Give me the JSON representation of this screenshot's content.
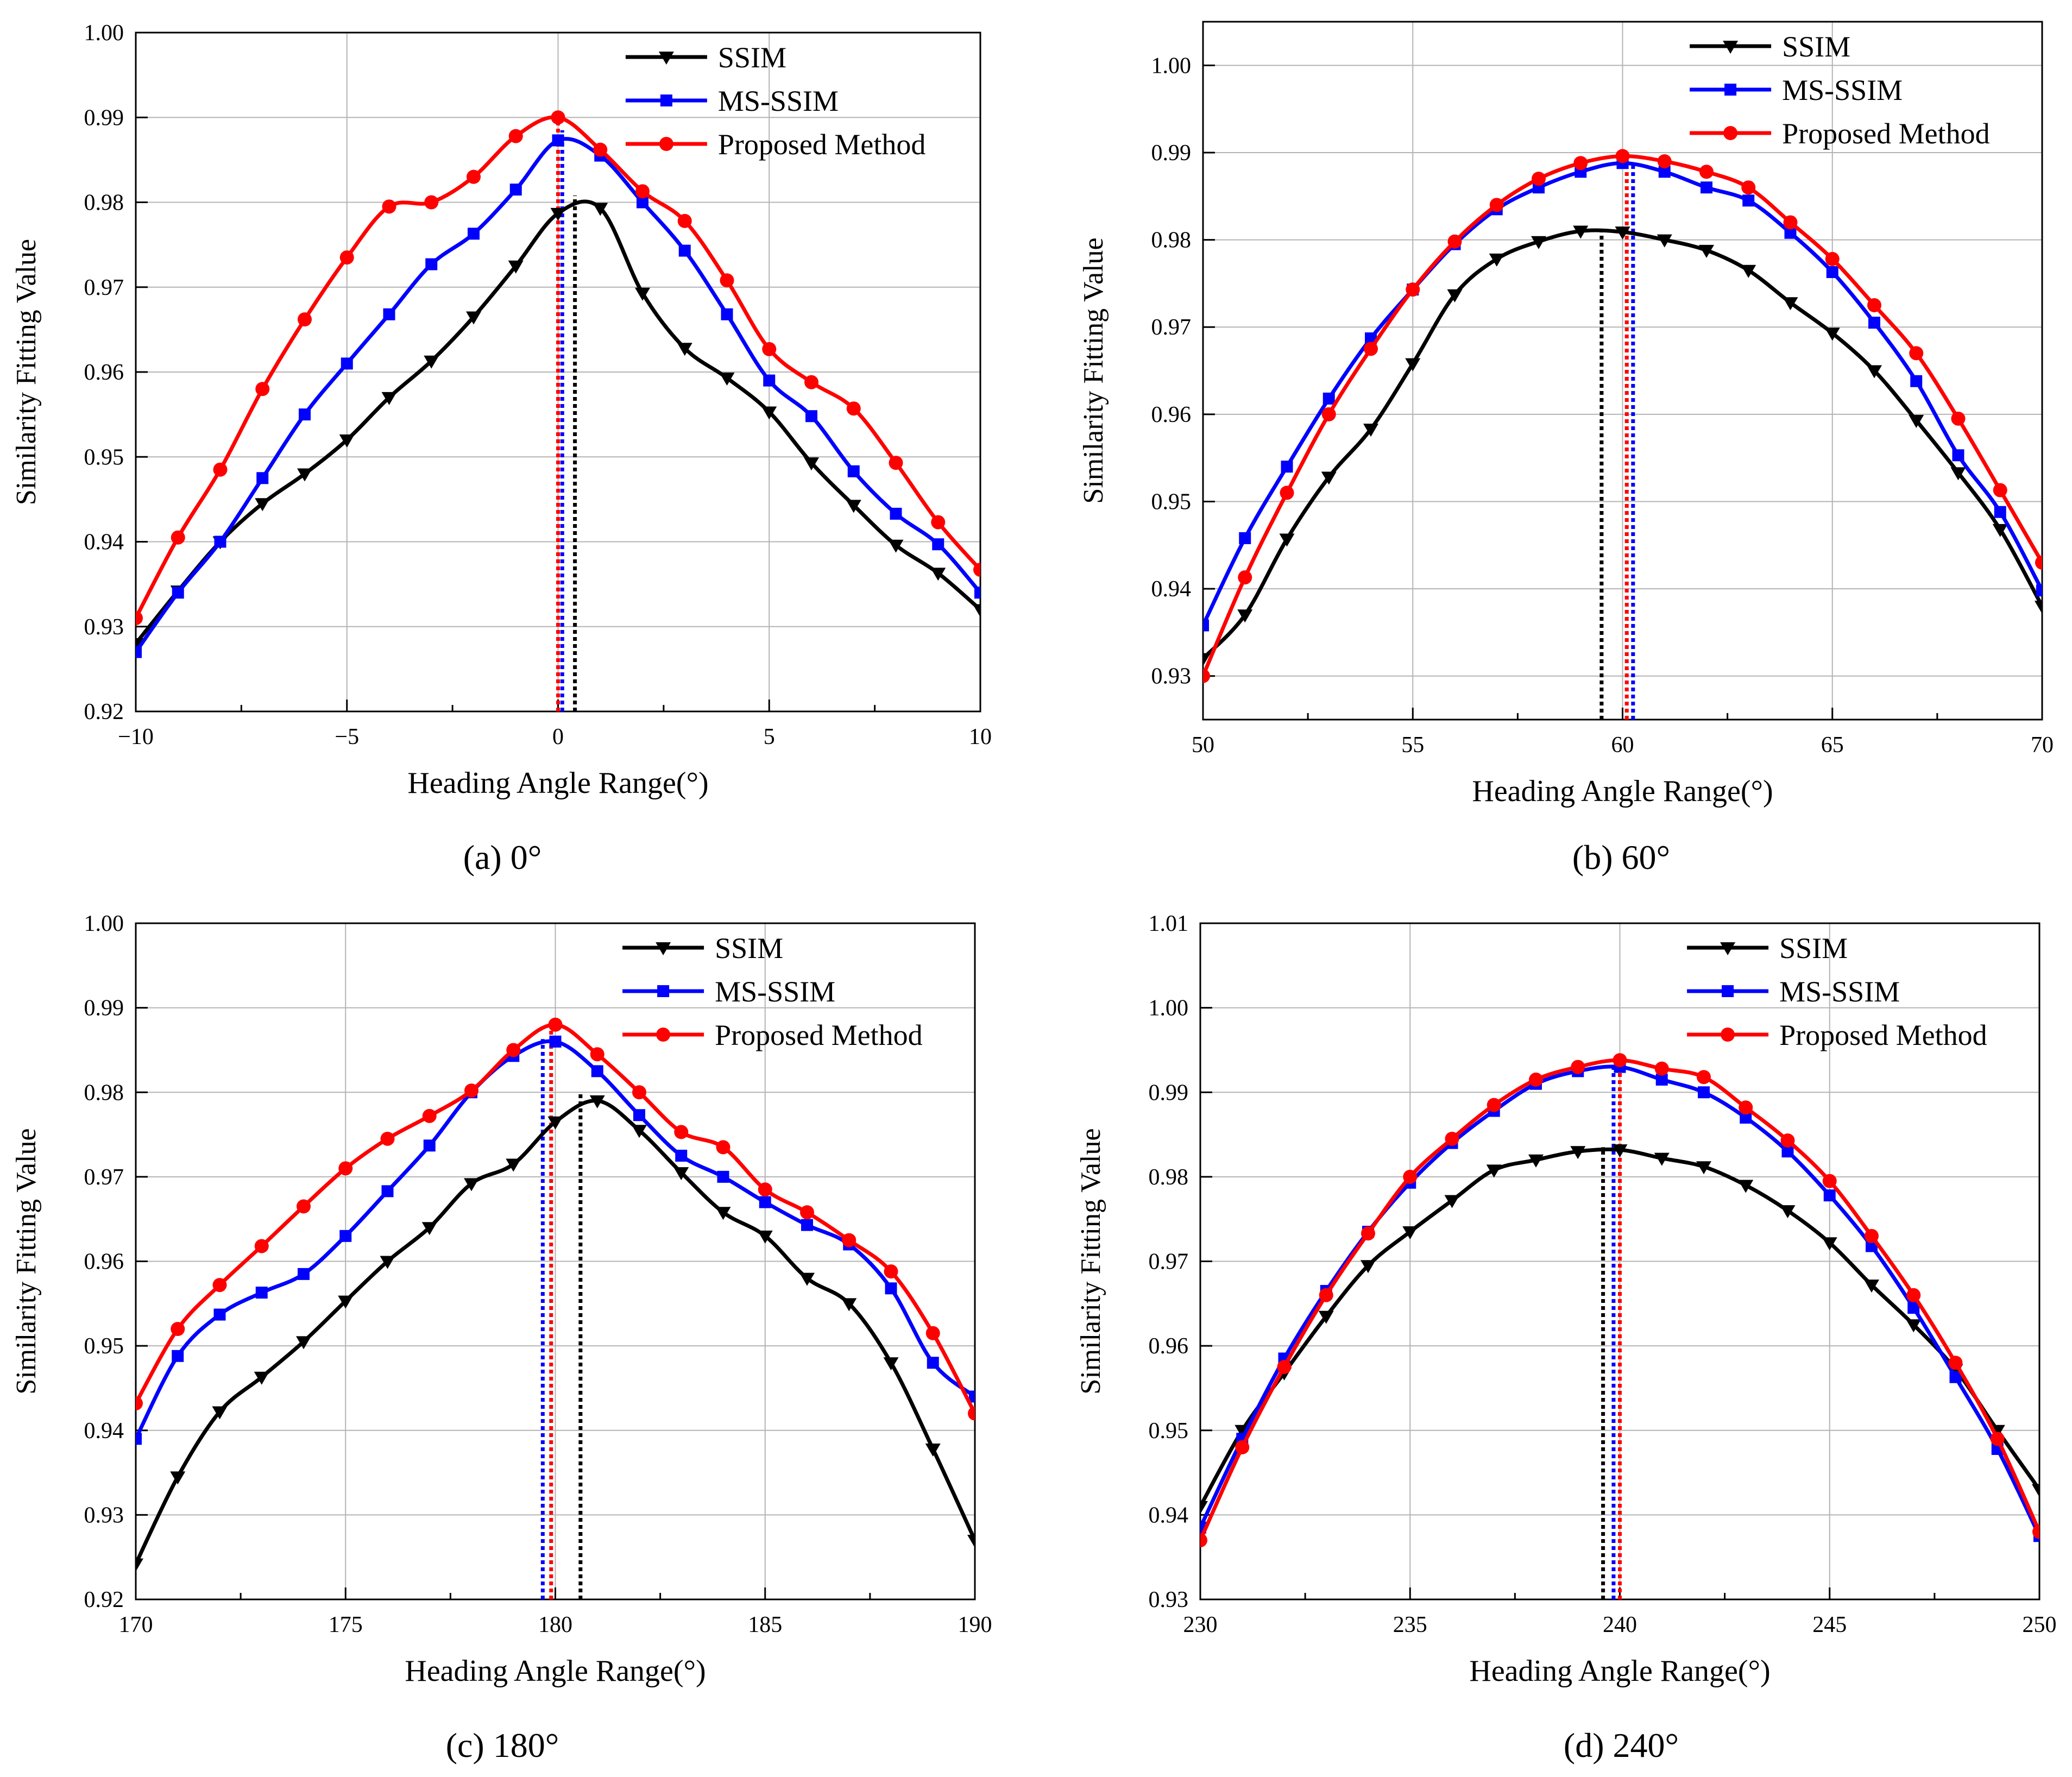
{
  "colors": {
    "ssim": "#000000",
    "msssim": "#0000ff",
    "proposed": "#ff0000",
    "grid": "#b4b4b4"
  },
  "legend": {
    "ssim": "SSIM",
    "msssim": "MS-SSIM",
    "proposed": "Proposed Method"
  },
  "chart_data": [
    {
      "type": "line",
      "caption_letter": "(a)",
      "caption_text": " 0°",
      "xlabel": "Heading Angle Range(°)",
      "ylabel": "Similarity Fitting Value",
      "xlim": [
        -10,
        10
      ],
      "ylim": [
        0.92,
        1.0
      ],
      "xticks": [
        -10,
        -5,
        0,
        5,
        10
      ],
      "xtick_labels": [
        "−10",
        "−5",
        "0",
        "5",
        "10"
      ],
      "yticks": [
        0.92,
        0.93,
        0.94,
        0.95,
        0.96,
        0.97,
        0.98,
        0.99,
        1.0
      ],
      "ytick_labels": [
        "0.92",
        "0.93",
        "0.94",
        "0.95",
        "0.96",
        "0.97",
        "0.98",
        "0.99",
        "1.00"
      ],
      "x": [
        -10,
        -9,
        -8,
        -7,
        -6,
        -5,
        -4,
        -3,
        -2,
        -1,
        0,
        1,
        2,
        3,
        4,
        5,
        6,
        7,
        8,
        9,
        10
      ],
      "series": [
        {
          "name": "SSIM",
          "key": "ssim",
          "marker": "triangle-down",
          "values": [
            0.928,
            0.9342,
            0.94,
            0.9445,
            0.948,
            0.952,
            0.957,
            0.9613,
            0.9665,
            0.9725,
            0.9787,
            0.9793,
            0.9693,
            0.9628,
            0.9593,
            0.9553,
            0.9493,
            0.9443,
            0.9396,
            0.9363,
            0.932
          ]
        },
        {
          "name": "MS-SSIM",
          "key": "msssim",
          "marker": "square",
          "values": [
            0.927,
            0.934,
            0.94,
            0.9475,
            0.955,
            0.961,
            0.9668,
            0.9727,
            0.9763,
            0.9815,
            0.9873,
            0.9855,
            0.98,
            0.9743,
            0.9668,
            0.959,
            0.9548,
            0.9483,
            0.9433,
            0.9397,
            0.934
          ]
        },
        {
          "name": "Proposed Method",
          "key": "proposed",
          "marker": "circle",
          "values": [
            0.931,
            0.9405,
            0.9485,
            0.958,
            0.9662,
            0.9735,
            0.9795,
            0.98,
            0.983,
            0.9878,
            0.99,
            0.9862,
            0.9813,
            0.9778,
            0.9708,
            0.9627,
            0.9588,
            0.9557,
            0.9493,
            0.9423,
            0.9367
          ]
        }
      ],
      "peaks": [
        {
          "x": 0.4,
          "y": 0.9808,
          "key": "ssim"
        },
        {
          "x": 0.1,
          "y": 0.9885,
          "key": "msssim"
        },
        {
          "x": 0.0,
          "y": 0.99,
          "key": "proposed"
        }
      ]
    },
    {
      "type": "line",
      "caption_letter": "(b)",
      "caption_text": " 60°",
      "xlabel": "Heading Angle Range(°)",
      "ylabel": "Similarity Fitting Value",
      "xlim": [
        50,
        70
      ],
      "ylim": [
        0.925,
        1.005
      ],
      "xticks": [
        50,
        55,
        60,
        65,
        70
      ],
      "xtick_labels": [
        "50",
        "55",
        "60",
        "65",
        "70"
      ],
      "yticks": [
        0.93,
        0.94,
        0.95,
        0.96,
        0.97,
        0.98,
        0.99,
        1.0
      ],
      "ytick_labels": [
        "0.93",
        "0.94",
        "0.95",
        "0.96",
        "0.97",
        "0.98",
        "0.99",
        "1.00"
      ],
      "x": [
        50,
        51,
        52,
        53,
        54,
        55,
        56,
        57,
        58,
        59,
        60,
        61,
        62,
        63,
        64,
        65,
        66,
        67,
        68,
        69,
        70
      ],
      "series": [
        {
          "name": "SSIM",
          "key": "ssim",
          "marker": "triangle-down",
          "values": [
            0.932,
            0.937,
            0.9457,
            0.9528,
            0.9583,
            0.9658,
            0.9737,
            0.9778,
            0.9798,
            0.981,
            0.9809,
            0.98,
            0.9788,
            0.9765,
            0.9728,
            0.9693,
            0.965,
            0.9593,
            0.9533,
            0.9468,
            0.938
          ]
        },
        {
          "name": "MS-SSIM",
          "key": "msssim",
          "marker": "square",
          "values": [
            0.9358,
            0.9458,
            0.954,
            0.9618,
            0.9687,
            0.9743,
            0.9795,
            0.9835,
            0.986,
            0.9878,
            0.9888,
            0.9878,
            0.986,
            0.9845,
            0.9808,
            0.9763,
            0.9705,
            0.9638,
            0.9553,
            0.9488,
            0.9398
          ]
        },
        {
          "name": "Proposed Method",
          "key": "proposed",
          "marker": "circle",
          "values": [
            0.93,
            0.9413,
            0.951,
            0.96,
            0.9675,
            0.9743,
            0.9798,
            0.984,
            0.987,
            0.9888,
            0.9896,
            0.989,
            0.9878,
            0.986,
            0.982,
            0.9778,
            0.9725,
            0.967,
            0.9595,
            0.9513,
            0.943
          ]
        }
      ],
      "peaks": [
        {
          "x": 59.5,
          "y": 0.9812,
          "key": "ssim"
        },
        {
          "x": 60.25,
          "y": 0.9889,
          "key": "msssim"
        },
        {
          "x": 60.1,
          "y": 0.9896,
          "key": "proposed"
        }
      ]
    },
    {
      "type": "line",
      "caption_letter": "(c)",
      "caption_text": " 180°",
      "xlabel": "Heading Angle Range(°)",
      "ylabel": "Similarity Fitting Value",
      "xlim": [
        170,
        190
      ],
      "ylim": [
        0.92,
        1.0
      ],
      "xticks": [
        170,
        175,
        180,
        185,
        190
      ],
      "xtick_labels": [
        "170",
        "175",
        "180",
        "185",
        "190"
      ],
      "yticks": [
        0.92,
        0.93,
        0.94,
        0.95,
        0.96,
        0.97,
        0.98,
        0.99,
        1.0
      ],
      "ytick_labels": [
        "0.92",
        "0.93",
        "0.94",
        "0.95",
        "0.96",
        "0.97",
        "0.98",
        "0.99",
        "1.00"
      ],
      "x": [
        170,
        171,
        172,
        173,
        174,
        175,
        176,
        177,
        178,
        179,
        180,
        181,
        182,
        183,
        184,
        185,
        186,
        187,
        188,
        189,
        190
      ],
      "series": [
        {
          "name": "SSIM",
          "key": "ssim",
          "marker": "triangle-down",
          "values": [
            0.9242,
            0.9345,
            0.9422,
            0.9463,
            0.9505,
            0.9553,
            0.96,
            0.964,
            0.9692,
            0.9715,
            0.9765,
            0.979,
            0.9755,
            0.9705,
            0.9658,
            0.963,
            0.958,
            0.955,
            0.948,
            0.9378,
            0.927
          ]
        },
        {
          "name": "MS-SSIM",
          "key": "msssim",
          "marker": "square",
          "values": [
            0.939,
            0.9488,
            0.9537,
            0.9563,
            0.9585,
            0.963,
            0.9683,
            0.9737,
            0.98,
            0.9843,
            0.986,
            0.9825,
            0.9773,
            0.9725,
            0.97,
            0.967,
            0.9643,
            0.962,
            0.9568,
            0.948,
            0.944
          ]
        },
        {
          "name": "Proposed Method",
          "key": "proposed",
          "marker": "circle",
          "values": [
            0.9432,
            0.952,
            0.9572,
            0.9618,
            0.9665,
            0.971,
            0.9745,
            0.9772,
            0.9802,
            0.985,
            0.988,
            0.9845,
            0.98,
            0.9753,
            0.9735,
            0.9685,
            0.9658,
            0.9625,
            0.9588,
            0.9515,
            0.942
          ]
        }
      ],
      "peaks": [
        {
          "x": 180.6,
          "y": 0.98,
          "key": "ssim"
        },
        {
          "x": 179.7,
          "y": 0.9863,
          "key": "msssim"
        },
        {
          "x": 179.9,
          "y": 0.9882,
          "key": "proposed"
        }
      ]
    },
    {
      "type": "line",
      "caption_letter": "(d)",
      "caption_text": " 240°",
      "xlabel": "Heading Angle Range(°)",
      "ylabel": "Similarity Fitting Value",
      "xlim": [
        230,
        250
      ],
      "ylim": [
        0.93,
        1.01
      ],
      "xticks": [
        230,
        235,
        240,
        245,
        250
      ],
      "xtick_labels": [
        "230",
        "235",
        "240",
        "245",
        "250"
      ],
      "yticks": [
        0.93,
        0.94,
        0.95,
        0.96,
        0.97,
        0.98,
        0.99,
        1.0,
        1.01
      ],
      "ytick_labels": [
        "0.93",
        "0.94",
        "0.95",
        "0.96",
        "0.97",
        "0.98",
        "0.99",
        "1.00",
        "1.01"
      ],
      "x": [
        230,
        231,
        232,
        233,
        234,
        235,
        236,
        237,
        238,
        239,
        240,
        241,
        242,
        243,
        244,
        245,
        246,
        247,
        248,
        249,
        250
      ],
      "series": [
        {
          "name": "SSIM",
          "key": "ssim",
          "marker": "triangle-down",
          "values": [
            0.941,
            0.95,
            0.9568,
            0.9635,
            0.9695,
            0.9735,
            0.9772,
            0.9808,
            0.982,
            0.983,
            0.9832,
            0.9822,
            0.9812,
            0.979,
            0.976,
            0.9722,
            0.9672,
            0.9625,
            0.9572,
            0.95,
            0.943
          ]
        },
        {
          "name": "MS-SSIM",
          "key": "msssim",
          "marker": "square",
          "values": [
            0.9385,
            0.949,
            0.9585,
            0.9665,
            0.9735,
            0.9793,
            0.984,
            0.9878,
            0.991,
            0.9925,
            0.993,
            0.9915,
            0.99,
            0.987,
            0.983,
            0.9778,
            0.9718,
            0.9645,
            0.9563,
            0.9478,
            0.9375
          ]
        },
        {
          "name": "Proposed Method",
          "key": "proposed",
          "marker": "circle",
          "values": [
            0.937,
            0.948,
            0.9575,
            0.966,
            0.9733,
            0.98,
            0.9845,
            0.9885,
            0.9915,
            0.993,
            0.9938,
            0.9928,
            0.9918,
            0.9882,
            0.9843,
            0.9795,
            0.973,
            0.966,
            0.958,
            0.949,
            0.938
          ]
        }
      ],
      "peaks": [
        {
          "x": 239.6,
          "y": 0.9835,
          "key": "ssim"
        },
        {
          "x": 239.85,
          "y": 0.9932,
          "key": "msssim"
        },
        {
          "x": 240.0,
          "y": 0.9938,
          "key": "proposed"
        }
      ]
    }
  ]
}
